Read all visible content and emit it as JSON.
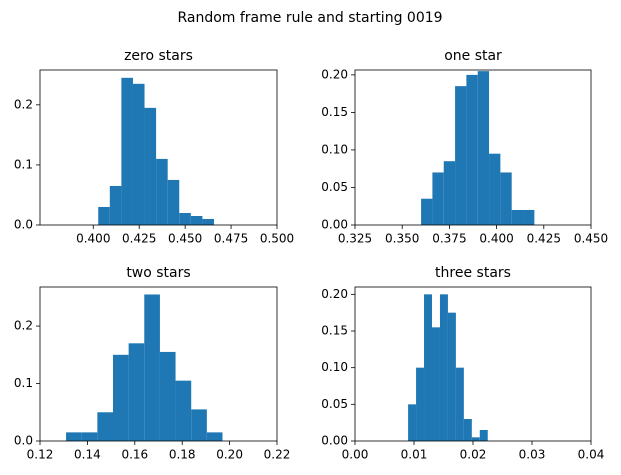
{
  "title": "Random frame rule and starting 0019",
  "chart_data": [
    {
      "type": "histogram",
      "title": "zero stars",
      "color": "#1f77b4",
      "bins": [
        0.4027,
        0.409,
        0.4153,
        0.4216,
        0.4279,
        0.4342,
        0.4405,
        0.4468,
        0.4531,
        0.4594,
        0.4657
      ],
      "values": [
        0.03,
        0.065,
        0.245,
        0.235,
        0.195,
        0.11,
        0.075,
        0.02,
        0.015,
        0.01
      ],
      "xlim": [
        0.371,
        0.5
      ],
      "ylim": [
        0,
        0.258
      ],
      "xticks": [
        {
          "value": 0.4,
          "label": "0.400"
        },
        {
          "value": 0.425,
          "label": "0.425"
        },
        {
          "value": 0.45,
          "label": "0.450"
        },
        {
          "value": 0.475,
          "label": "0.475"
        },
        {
          "value": 0.5,
          "label": "0.500"
        }
      ],
      "yticks": [
        {
          "value": 0,
          "label": "0.0"
        },
        0.1,
        0.2
      ]
    },
    {
      "type": "histogram",
      "title": "one star",
      "color": "#1f77b4",
      "bins": [
        0.36,
        0.366,
        0.372,
        0.378,
        0.384,
        0.39,
        0.396,
        0.402,
        0.408,
        0.414,
        0.42
      ],
      "values": [
        0.035,
        0.07,
        0.085,
        0.185,
        0.2,
        0.205,
        0.095,
        0.07,
        0.02,
        0.02
      ],
      "xlim": [
        0.325,
        0.45
      ],
      "ylim": [
        0,
        0.2065
      ],
      "xticks": [
        0.325,
        {
          "value": 0.35,
          "label": "0.350"
        },
        0.375,
        {
          "value": 0.4,
          "label": "0.400"
        },
        0.425,
        {
          "value": 0.45,
          "label": "0.450"
        }
      ],
      "yticks": [
        {
          "value": 0,
          "label": "0.00"
        },
        0.05,
        {
          "value": 0.1,
          "label": "0.10"
        },
        0.15,
        {
          "value": 0.2,
          "label": "0.20"
        }
      ]
    },
    {
      "type": "histogram",
      "title": "two stars",
      "color": "#1f77b4",
      "bins": [
        0.131,
        0.1376,
        0.1442,
        0.1508,
        0.1574,
        0.164,
        0.1706,
        0.1772,
        0.1838,
        0.1904,
        0.197
      ],
      "values": [
        0.015,
        0.015,
        0.05,
        0.15,
        0.17,
        0.255,
        0.155,
        0.105,
        0.055,
        0.015
      ],
      "xlim": [
        0.12,
        0.22
      ],
      "ylim": [
        0,
        0.268
      ],
      "xticks": [
        0.12,
        0.14,
        0.16,
        0.18,
        {
          "value": 0.2,
          "label": "0.20"
        },
        0.22
      ],
      "yticks": [
        {
          "value": 0,
          "label": "0.0"
        },
        0.1,
        0.2
      ]
    },
    {
      "type": "histogram",
      "title": "three stars",
      "color": "#1f77b4",
      "bins": [
        0.009,
        0.01035,
        0.0117,
        0.01305,
        0.0144,
        0.01575,
        0.0171,
        0.01845,
        0.0198,
        0.02115,
        0.0225
      ],
      "values": [
        0.05,
        0.1,
        0.2,
        0.155,
        0.2,
        0.175,
        0.1,
        0.03,
        0.005,
        0.015
      ],
      "xlim": [
        0,
        0.04
      ],
      "ylim": [
        0,
        0.21
      ],
      "xticks": [
        {
          "value": 0,
          "label": "0.00"
        },
        0.01,
        0.02,
        0.03,
        0.04
      ],
      "yticks": [
        {
          "value": 0,
          "label": "0.00"
        },
        0.05,
        {
          "value": 0.1,
          "label": "0.10"
        },
        0.15,
        {
          "value": 0.2,
          "label": "0.20"
        }
      ]
    }
  ]
}
